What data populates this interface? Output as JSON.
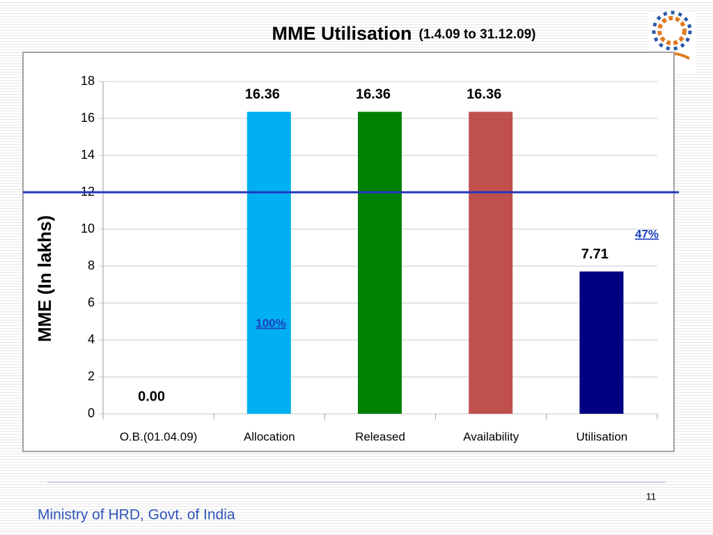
{
  "chart_data": {
    "type": "bar",
    "title": "MME Utilisation",
    "subtitle": "(1.4.09 to 31.12.09)",
    "y_label": "MME (In lakhs)",
    "categories": [
      "O.B.(01.04.09)",
      "Allocation",
      "Released",
      "Availability",
      "Utilisation"
    ],
    "values": [
      0,
      16.36,
      16.36,
      16.36,
      7.71
    ],
    "value_labels": [
      "0.00",
      "16.36",
      "16.36",
      "16.36",
      "7.71"
    ],
    "colors": [
      "#00b0f0",
      "#00b0f0",
      "#008000",
      "#c0504d",
      "#000080"
    ],
    "ylim": [
      0,
      18
    ],
    "yticks": [
      0,
      2,
      4,
      6,
      8,
      10,
      12,
      14,
      16,
      18
    ],
    "grid": true,
    "reference_line": {
      "value": 12,
      "color": "#2236c0"
    },
    "annotations": [
      "100%",
      "47%"
    ]
  },
  "footer": {
    "organisation": "Ministry of HRD, Govt. of India",
    "page_number": "11"
  }
}
